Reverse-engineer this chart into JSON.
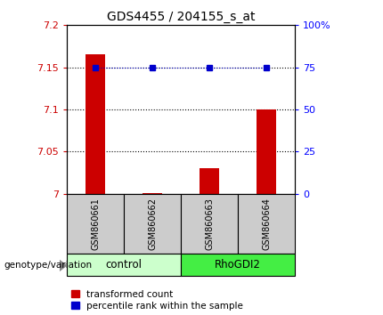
{
  "title": "GDS4455 / 204155_s_at",
  "samples": [
    "GSM860661",
    "GSM860662",
    "GSM860663",
    "GSM860664"
  ],
  "group_labels": [
    "control",
    "RhoGDI2"
  ],
  "group_colors": [
    "#ccffcc",
    "#44ee44"
  ],
  "bar_values": [
    7.165,
    7.001,
    7.03,
    7.1
  ],
  "percentile_values": [
    75,
    75,
    75,
    75
  ],
  "ylim_left": [
    7.0,
    7.2
  ],
  "ylim_right": [
    0,
    100
  ],
  "yticks_left": [
    7.0,
    7.05,
    7.1,
    7.15,
    7.2
  ],
  "yticks_right": [
    0,
    25,
    50,
    75,
    100
  ],
  "ytick_labels_left": [
    "7",
    "7.05",
    "7.1",
    "7.15",
    "7.2"
  ],
  "ytick_labels_right": [
    "0",
    "25",
    "50",
    "75",
    "100%"
  ],
  "hlines": [
    7.05,
    7.1,
    7.15
  ],
  "bar_color": "#cc0000",
  "percentile_color": "#0000cc",
  "bar_width": 0.35,
  "legend_labels": [
    "transformed count",
    "percentile rank within the sample"
  ],
  "genotype_label": "genotype/variation",
  "sample_box_color": "#cccccc",
  "fig_width": 4.3,
  "fig_height": 3.54
}
